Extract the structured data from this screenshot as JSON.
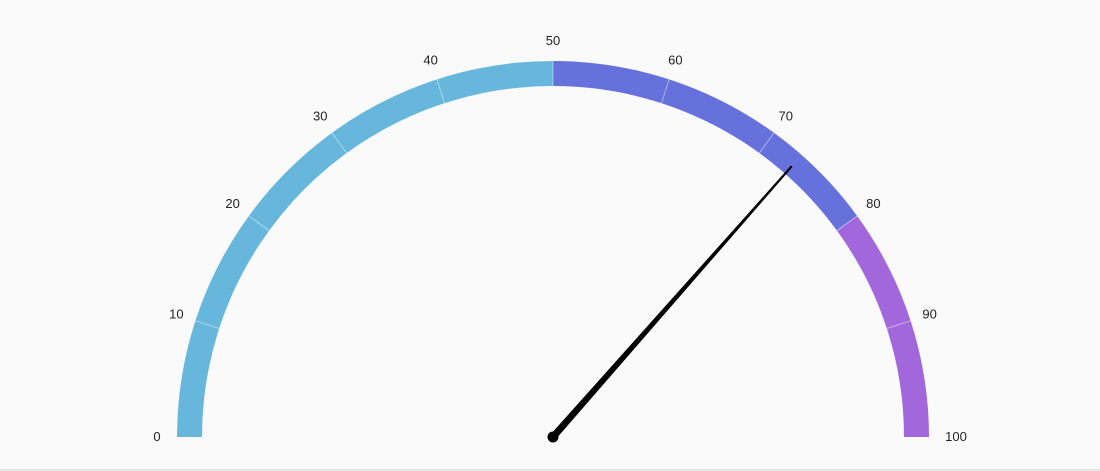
{
  "chart_data": {
    "type": "gauge",
    "min": 0,
    "max": 100,
    "value": 73,
    "tick_labels": [
      "0",
      "10",
      "20",
      "30",
      "40",
      "50",
      "60",
      "70",
      "80",
      "90",
      "100"
    ],
    "bands": [
      {
        "from": 0,
        "to": 50,
        "color": "#67b7dc"
      },
      {
        "from": 50,
        "to": 80,
        "color": "#6771dc"
      },
      {
        "from": 80,
        "to": 100,
        "color": "#a367dc"
      }
    ],
    "hand_color": "#000000",
    "background": "#fafafa"
  }
}
